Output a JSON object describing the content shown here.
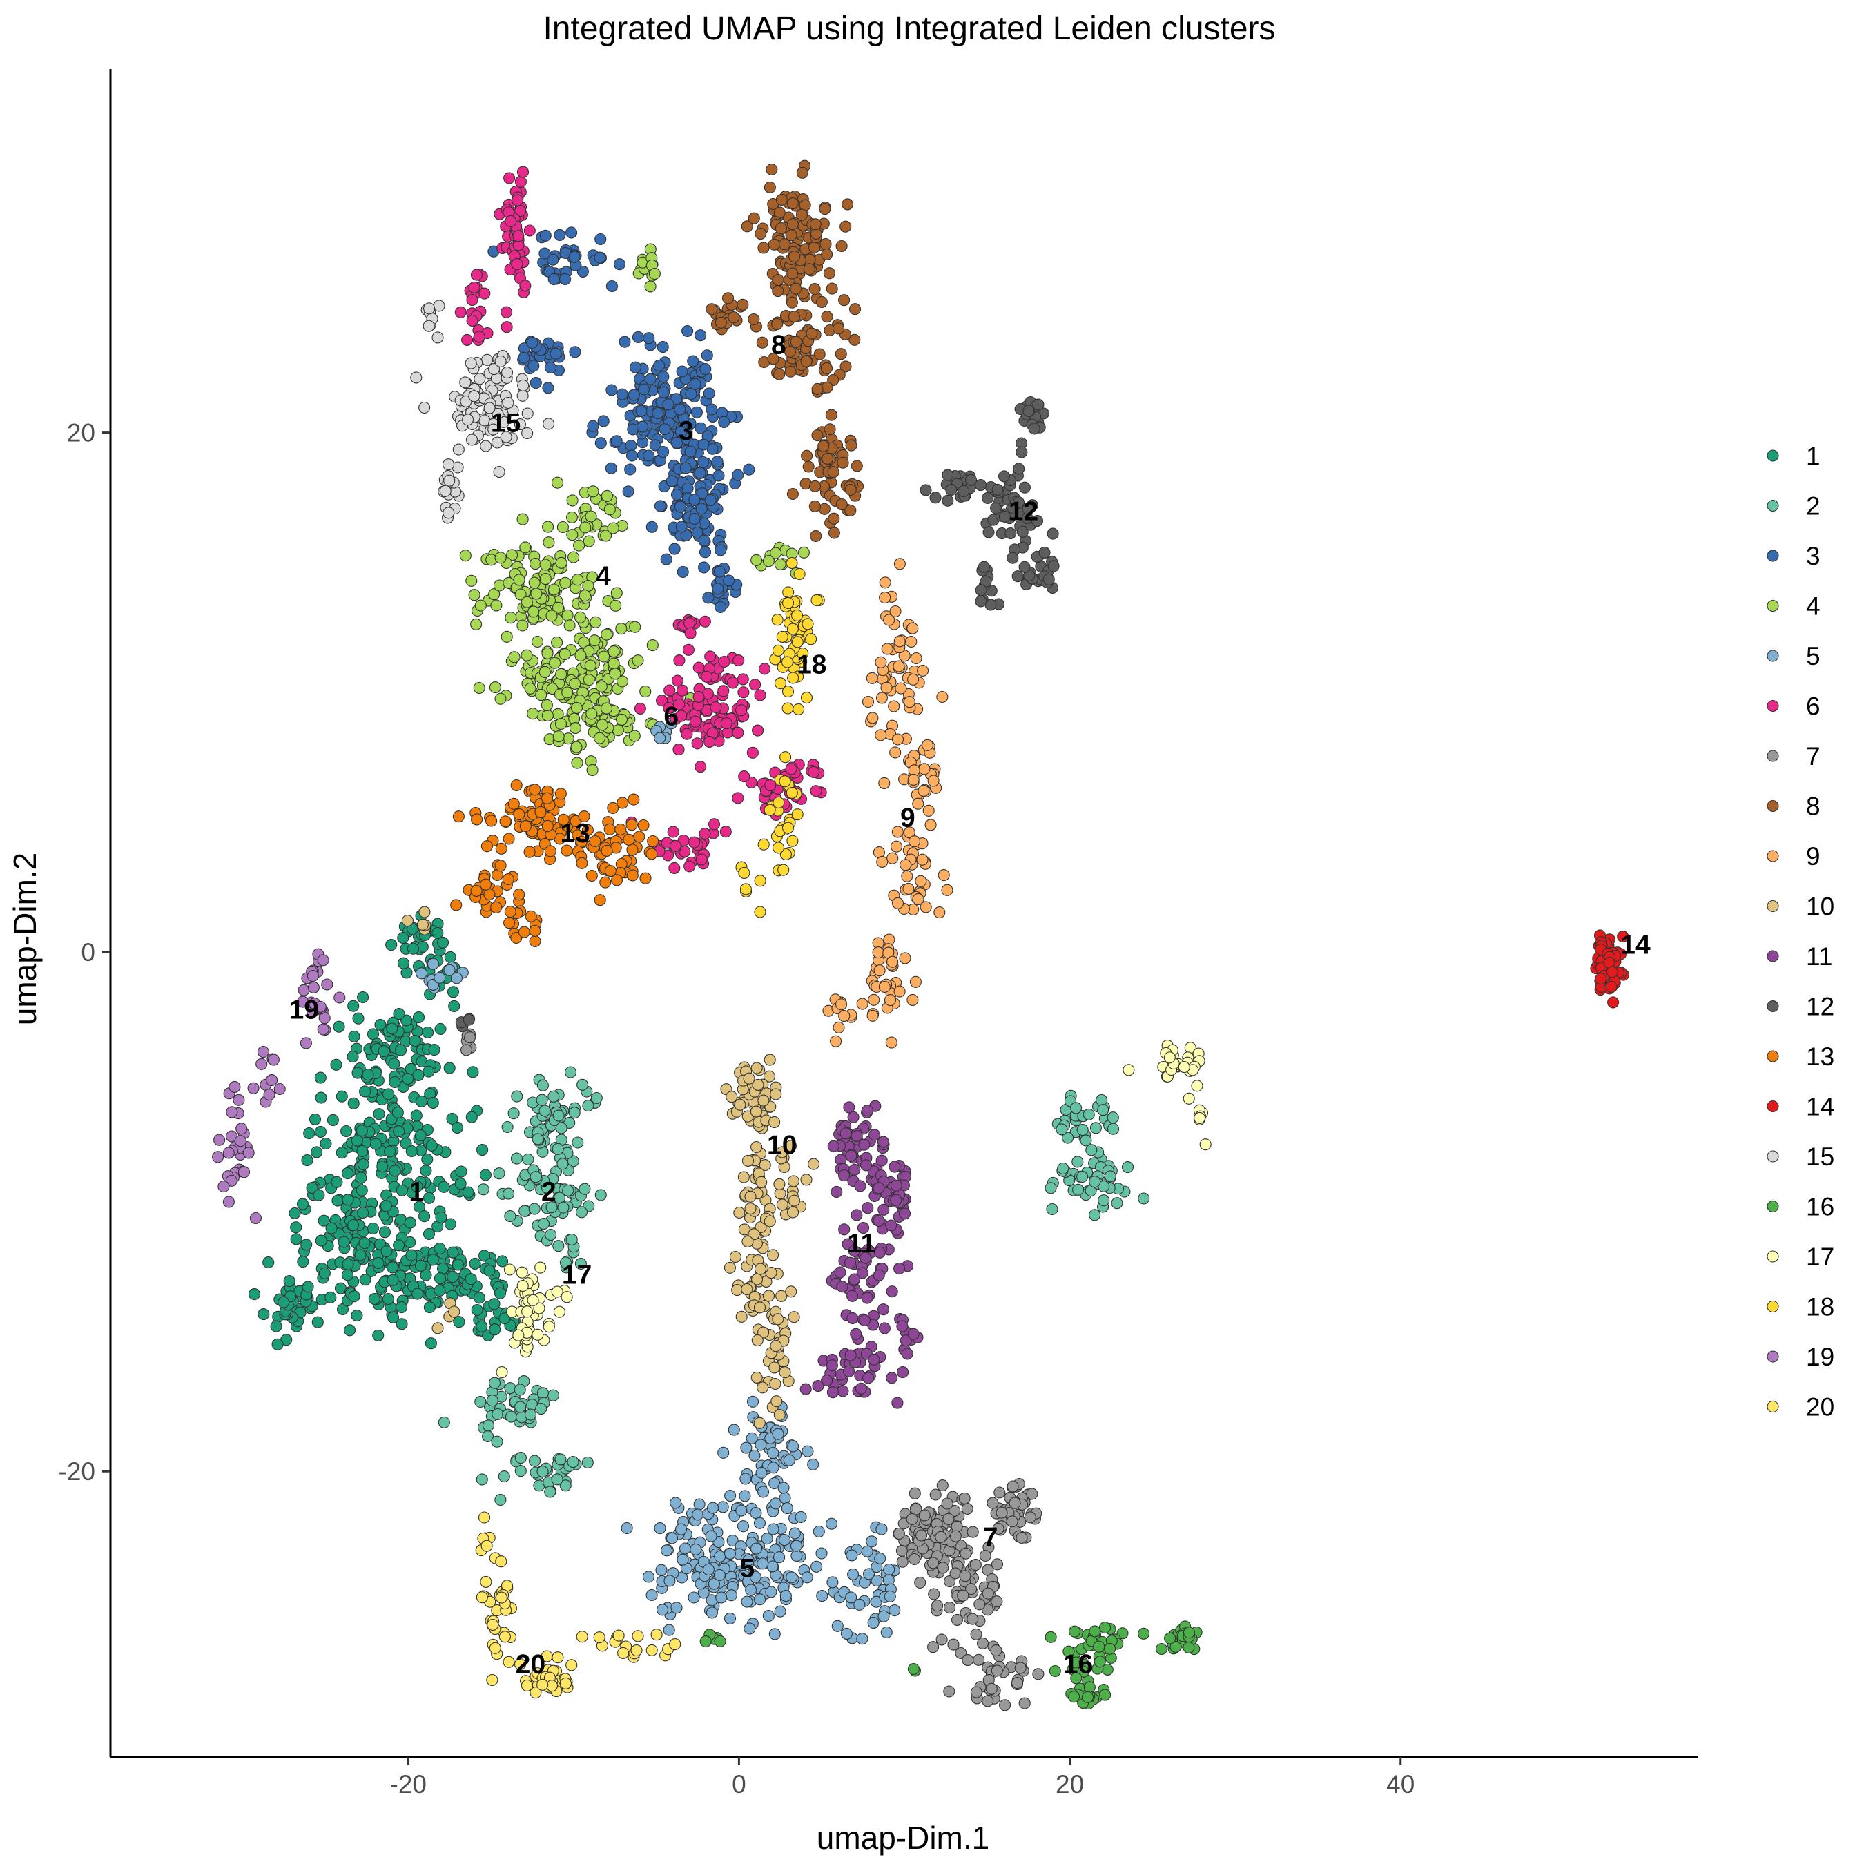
{
  "chart_data": {
    "type": "scatter",
    "title": "Integrated UMAP using Integrated Leiden clusters",
    "xlabel": "umap-Dim.1",
    "ylabel": "umap-Dim.2",
    "xlim": [
      -38,
      58
    ],
    "ylim": [
      -31,
      34
    ],
    "xticks": [
      -20,
      0,
      20,
      40
    ],
    "yticks": [
      -20,
      0,
      20
    ],
    "grid": false,
    "legend_position": "right",
    "point_outline": "#333333",
    "series": [
      {
        "name": "1",
        "color": "#1B9E77",
        "label_at": [
          -19.5,
          -9.2
        ],
        "blobs": [
          [
            -19,
            0,
            1.3,
            1.2,
            35
          ],
          [
            -21,
            -4,
            2.8,
            2.0,
            90
          ],
          [
            -21.5,
            -8.5,
            4.0,
            2.6,
            170
          ],
          [
            -20,
            -12.5,
            4.6,
            1.6,
            140
          ],
          [
            -27,
            -13.5,
            1.6,
            1.0,
            40
          ],
          [
            -15,
            -14,
            1.3,
            0.8,
            25
          ],
          [
            -24,
            -11,
            1.8,
            1.4,
            40
          ]
        ]
      },
      {
        "name": "2",
        "color": "#66C2A5",
        "label_at": [
          -11.5,
          -9.2
        ],
        "blobs": [
          [
            -11,
            -6.5,
            1.8,
            1.3,
            55
          ],
          [
            -11.5,
            -9.3,
            2.5,
            1.5,
            60
          ],
          [
            -10,
            -11.5,
            0.6,
            0.9,
            8
          ],
          [
            -14,
            -17.5,
            2.5,
            0.8,
            40
          ],
          [
            -12,
            -20.0,
            2.4,
            0.6,
            30
          ],
          [
            21,
            -6.5,
            1.5,
            0.8,
            30
          ],
          [
            21,
            -9,
            2.0,
            1.0,
            40
          ]
        ]
      },
      {
        "name": "3",
        "color": "#386CB0",
        "label_at": [
          -3.2,
          20.1
        ],
        "blobs": [
          [
            -4,
            20.5,
            2.6,
            2.2,
            180
          ],
          [
            -2.5,
            17.0,
            1.8,
            1.7,
            80
          ],
          [
            -12,
            23,
            1.3,
            0.7,
            30
          ],
          [
            -10.5,
            26.5,
            2.0,
            0.8,
            35
          ],
          [
            -1,
            14,
            0.8,
            0.8,
            18
          ]
        ]
      },
      {
        "name": "4",
        "color": "#A6D854",
        "label_at": [
          -8.2,
          14.5
        ],
        "blobs": [
          [
            -12,
            14,
            3.2,
            1.6,
            110
          ],
          [
            -10,
            11,
            3.4,
            1.6,
            110
          ],
          [
            -9,
            9,
            3.0,
            1.3,
            70
          ],
          [
            -9,
            16.8,
            1.8,
            0.8,
            30
          ],
          [
            -5.5,
            26.5,
            0.8,
            0.5,
            12
          ],
          [
            2.5,
            15,
            1.1,
            0.5,
            12
          ]
        ]
      },
      {
        "name": "5",
        "color": "#80B1D3",
        "label_at": [
          0.5,
          -23.7
        ],
        "blobs": [
          [
            0,
            -23.5,
            4.2,
            2.2,
            200
          ],
          [
            2,
            -19.5,
            1.8,
            1.5,
            50
          ],
          [
            8,
            -24.5,
            1.8,
            1.5,
            45
          ],
          [
            -18,
            -0.8,
            1.3,
            0.4,
            12
          ],
          [
            -4.5,
            8.5,
            0.5,
            0.4,
            6
          ]
        ]
      },
      {
        "name": "6",
        "color": "#E7298A",
        "label_at": [
          -4.1,
          9.1
        ],
        "blobs": [
          [
            -1.5,
            9.5,
            2.3,
            1.6,
            95
          ],
          [
            2.5,
            6.3,
            2.0,
            0.9,
            45
          ],
          [
            -3,
            4.2,
            2.5,
            0.8,
            30
          ],
          [
            -13.5,
            27.5,
            0.7,
            2.2,
            50
          ],
          [
            -16,
            25,
            0.5,
            1.2,
            20
          ],
          [
            -3,
            12.5,
            0.8,
            0.5,
            10
          ]
        ]
      },
      {
        "name": "7",
        "color": "#999999",
        "label_at": [
          15.2,
          -22.5
        ],
        "blobs": [
          [
            12,
            -22.5,
            2.4,
            1.4,
            90
          ],
          [
            16.5,
            -21.5,
            1.2,
            1.0,
            45
          ],
          [
            14,
            -25,
            1.8,
            1.5,
            50
          ],
          [
            16,
            -28,
            1.8,
            0.7,
            30
          ],
          [
            -16.5,
            -3.2,
            0.4,
            0.6,
            7
          ]
        ]
      },
      {
        "name": "8",
        "color": "#A6612A",
        "label_at": [
          2.4,
          23.4
        ],
        "blobs": [
          [
            3.5,
            27.5,
            1.8,
            1.8,
            110
          ],
          [
            4,
            23.5,
            2.2,
            1.7,
            70
          ],
          [
            5.5,
            18.5,
            1.2,
            2.0,
            60
          ],
          [
            -0.5,
            24.5,
            0.8,
            0.6,
            20
          ]
        ]
      },
      {
        "name": "9",
        "color": "#FDAE61",
        "label_at": [
          10.2,
          5.2
        ],
        "blobs": [
          [
            9.5,
            11,
            1.5,
            2.4,
            55
          ],
          [
            11,
            7,
            1.1,
            1.2,
            30
          ],
          [
            10.5,
            3.5,
            1.3,
            1.6,
            40
          ],
          [
            9,
            -1.0,
            1.3,
            1.5,
            35
          ],
          [
            6.5,
            -2.5,
            0.8,
            0.8,
            10
          ]
        ]
      },
      {
        "name": "10",
        "color": "#DFC27D",
        "label_at": [
          2.6,
          -7.4
        ],
        "blobs": [
          [
            1,
            -5.5,
            1.2,
            1.2,
            45
          ],
          [
            2,
            -9,
            1.5,
            1.5,
            50
          ],
          [
            1.2,
            -12.5,
            1.3,
            1.5,
            40
          ],
          [
            2,
            -15.5,
            1.0,
            1.8,
            35
          ],
          [
            -19,
            1.1,
            0.6,
            0.5,
            6
          ],
          [
            -17.5,
            -14,
            0.4,
            0.5,
            4
          ]
        ]
      },
      {
        "name": "11",
        "color": "#8E4797",
        "label_at": [
          7.4,
          -11.2
        ],
        "blobs": [
          [
            7,
            -7.5,
            1.4,
            1.3,
            45
          ],
          [
            9,
            -9.5,
            1.3,
            1.5,
            45
          ],
          [
            7.5,
            -12.5,
            1.6,
            1.8,
            45
          ],
          [
            7,
            -16,
            1.8,
            1.3,
            40
          ],
          [
            10,
            -15,
            0.6,
            1.0,
            10
          ]
        ]
      },
      {
        "name": "12",
        "color": "#5E5E5E",
        "label_at": [
          17.2,
          17.0
        ],
        "blobs": [
          [
            16.5,
            17,
            1.6,
            1.4,
            45
          ],
          [
            13.5,
            17.8,
            1.4,
            0.6,
            20
          ],
          [
            17.5,
            20.5,
            0.6,
            1.0,
            18
          ],
          [
            18,
            14.5,
            1.0,
            0.6,
            20
          ],
          [
            15,
            14,
            0.5,
            0.8,
            12
          ],
          [
            -16.5,
            -2.7,
            0.4,
            0.4,
            4
          ]
        ]
      },
      {
        "name": "13",
        "color": "#F17D0A",
        "label_at": [
          -9.9,
          4.6
        ],
        "blobs": [
          [
            -12,
            5.0,
            3.0,
            1.0,
            80
          ],
          [
            -7.5,
            3.8,
            2.2,
            1.0,
            50
          ],
          [
            -15,
            2.5,
            1.5,
            0.8,
            25
          ],
          [
            -13,
            1.0,
            1.2,
            0.7,
            15
          ]
        ]
      },
      {
        "name": "14",
        "color": "#E31A1C",
        "label_at": [
          54.2,
          0.3
        ],
        "blobs": [
          [
            52.5,
            -0.5,
            0.6,
            0.9,
            90
          ]
        ]
      },
      {
        "name": "15",
        "color": "#D9D9D9",
        "label_at": [
          -14.1,
          20.4
        ],
        "blobs": [
          [
            -15,
            21,
            1.9,
            1.7,
            90
          ],
          [
            -17.5,
            17.8,
            0.5,
            1.0,
            15
          ],
          [
            -18.5,
            24.5,
            0.4,
            0.6,
            8
          ]
        ]
      },
      {
        "name": "16",
        "color": "#4DAF4A",
        "label_at": [
          20.5,
          -27.4
        ],
        "blobs": [
          [
            21,
            -27,
            1.6,
            0.8,
            40
          ],
          [
            26.5,
            -26.4,
            1.3,
            0.4,
            25
          ],
          [
            21,
            -28.6,
            1.0,
            0.4,
            15
          ],
          [
            -1.5,
            -26.5,
            0.5,
            0.2,
            5
          ],
          [
            10.5,
            -27.5,
            0.2,
            0.2,
            2
          ]
        ]
      },
      {
        "name": "17",
        "color": "#FFFFB3",
        "label_at": [
          -9.8,
          -12.4
        ],
        "blobs": [
          [
            -12.5,
            -14,
            1.5,
            1.3,
            45
          ],
          [
            26.5,
            -4.5,
            1.5,
            0.8,
            25
          ],
          [
            28,
            -6.5,
            0.3,
            0.6,
            6
          ]
        ]
      },
      {
        "name": "18",
        "color": "#FFD92F",
        "label_at": [
          4.4,
          11.1
        ],
        "blobs": [
          [
            3.3,
            12,
            0.9,
            2.2,
            55
          ],
          [
            2.8,
            5.0,
            0.7,
            1.8,
            25
          ],
          [
            0.8,
            2.5,
            0.7,
            0.6,
            6
          ]
        ]
      },
      {
        "name": "19",
        "color": "#B07AC1",
        "label_at": [
          -26.3,
          -2.2
        ],
        "blobs": [
          [
            -25.5,
            -1.5,
            1.0,
            1.5,
            25
          ],
          [
            -30.5,
            -7.5,
            1.0,
            2.0,
            30
          ],
          [
            -28.5,
            -4.5,
            0.6,
            1.0,
            10
          ]
        ]
      },
      {
        "name": "20",
        "color": "#FFE666",
        "label_at": [
          -12.6,
          -27.4
        ],
        "blobs": [
          [
            -14.5,
            -25.5,
            0.9,
            1.5,
            30
          ],
          [
            -11.5,
            -28.0,
            1.2,
            0.6,
            35
          ],
          [
            -6.5,
            -26.7,
            2.0,
            0.5,
            20
          ],
          [
            -15.5,
            -22.5,
            0.4,
            0.5,
            6
          ]
        ]
      }
    ]
  }
}
